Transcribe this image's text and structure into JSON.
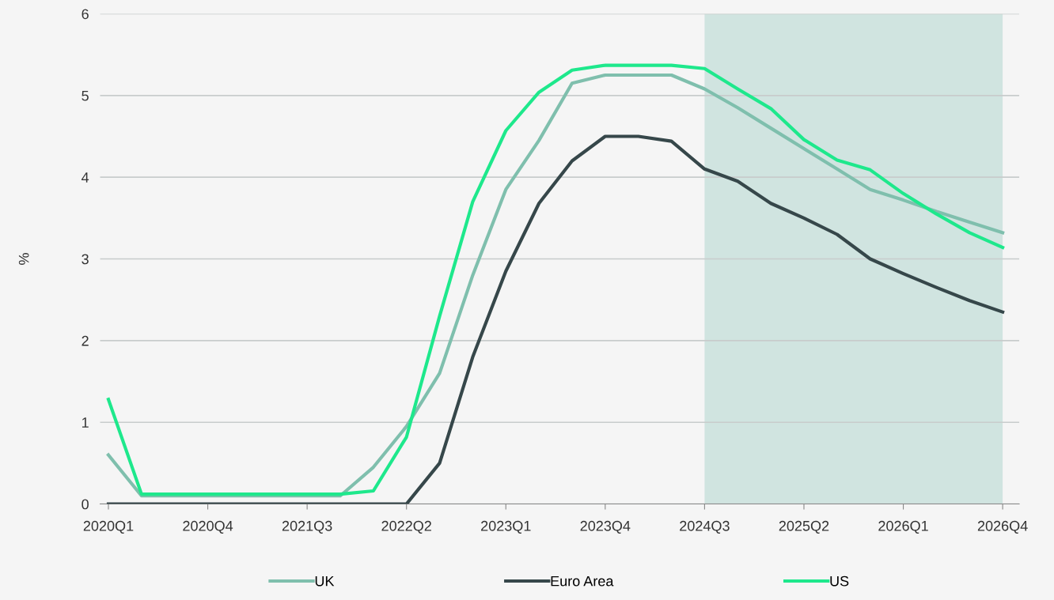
{
  "chart_data": {
    "type": "line",
    "ylabel": "%",
    "categories": [
      "2020Q1",
      null,
      null,
      "2020Q4",
      null,
      null,
      "2021Q3",
      null,
      null,
      "2022Q2",
      null,
      null,
      "2023Q1",
      null,
      null,
      "2023Q4",
      null,
      null,
      "2024Q3",
      null,
      null,
      "2025Q2",
      null,
      null,
      "2026Q1",
      null,
      null,
      "2026Q4"
    ],
    "series": [
      {
        "name": "UK",
        "color": "#7fbfad",
        "values": [
          0.6,
          0.1,
          0.1,
          0.1,
          0.1,
          0.1,
          0.1,
          0.1,
          0.45,
          0.95,
          1.6,
          2.8,
          3.85,
          4.45,
          5.15,
          5.25,
          5.25,
          5.25,
          5.08,
          4.85,
          4.6,
          4.35,
          4.1,
          3.85,
          3.72,
          3.58,
          3.45,
          3.32
        ]
      },
      {
        "name": "Euro Area",
        "color": "#36474a",
        "values": [
          0,
          0,
          0,
          0,
          0,
          0,
          0,
          0,
          0,
          0,
          0.5,
          1.8,
          2.85,
          3.68,
          4.2,
          4.5,
          4.5,
          4.44,
          4.1,
          3.95,
          3.68,
          3.5,
          3.3,
          3.0,
          2.82,
          2.65,
          2.49,
          2.35
        ]
      },
      {
        "name": "US",
        "color": "#1ee88c",
        "values": [
          1.28,
          0.12,
          0.12,
          0.12,
          0.12,
          0.12,
          0.12,
          0.12,
          0.16,
          0.82,
          2.3,
          3.7,
          4.57,
          5.04,
          5.31,
          5.37,
          5.37,
          5.37,
          5.33,
          5.08,
          4.84,
          4.46,
          4.21,
          4.09,
          3.8,
          3.55,
          3.32,
          3.14
        ]
      }
    ],
    "ylim": [
      0,
      6
    ],
    "yticks": [
      0,
      1,
      2,
      3,
      4,
      5,
      6
    ],
    "grid": "y",
    "legend": "bottom",
    "marker": "none",
    "line_style": "solid",
    "bands": [
      {
        "axis": "x",
        "from": "2024Q3",
        "to": "2026Q4",
        "color": "#d0e4e0"
      }
    ]
  }
}
